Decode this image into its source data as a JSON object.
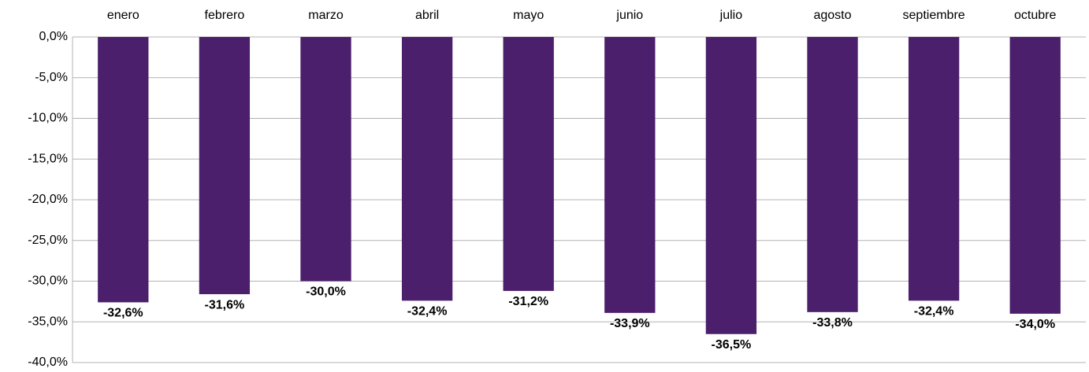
{
  "chart_data": {
    "type": "bar",
    "categories": [
      "enero",
      "febrero",
      "marzo",
      "abril",
      "mayo",
      "junio",
      "julio",
      "agosto",
      "septiembre",
      "octubre"
    ],
    "values": [
      -32.6,
      -31.6,
      -30.0,
      -32.4,
      -31.2,
      -33.9,
      -36.5,
      -33.8,
      -32.4,
      -34.0
    ],
    "value_labels": [
      "-32,6%",
      "-31,6%",
      "-30,0%",
      "-32,4%",
      "-31,2%",
      "-33,9%",
      "-36,5%",
      "-33,8%",
      "-32,4%",
      "-34,0%"
    ],
    "color": "#4b1f6b",
    "ylim": [
      -40,
      0
    ],
    "yticks": [
      {
        "value": 0,
        "label": "0,0%"
      },
      {
        "value": -5,
        "label": "-5,0%"
      },
      {
        "value": -10,
        "label": "-10,0%"
      },
      {
        "value": -15,
        "label": "-15,0%"
      },
      {
        "value": -20,
        "label": "-20,0%"
      },
      {
        "value": -25,
        "label": "-25,0%"
      },
      {
        "value": -30,
        "label": "-30,0%"
      },
      {
        "value": -35,
        "label": "-35,0%"
      },
      {
        "value": -40,
        "label": "-40,0%"
      }
    ],
    "grid": true
  }
}
